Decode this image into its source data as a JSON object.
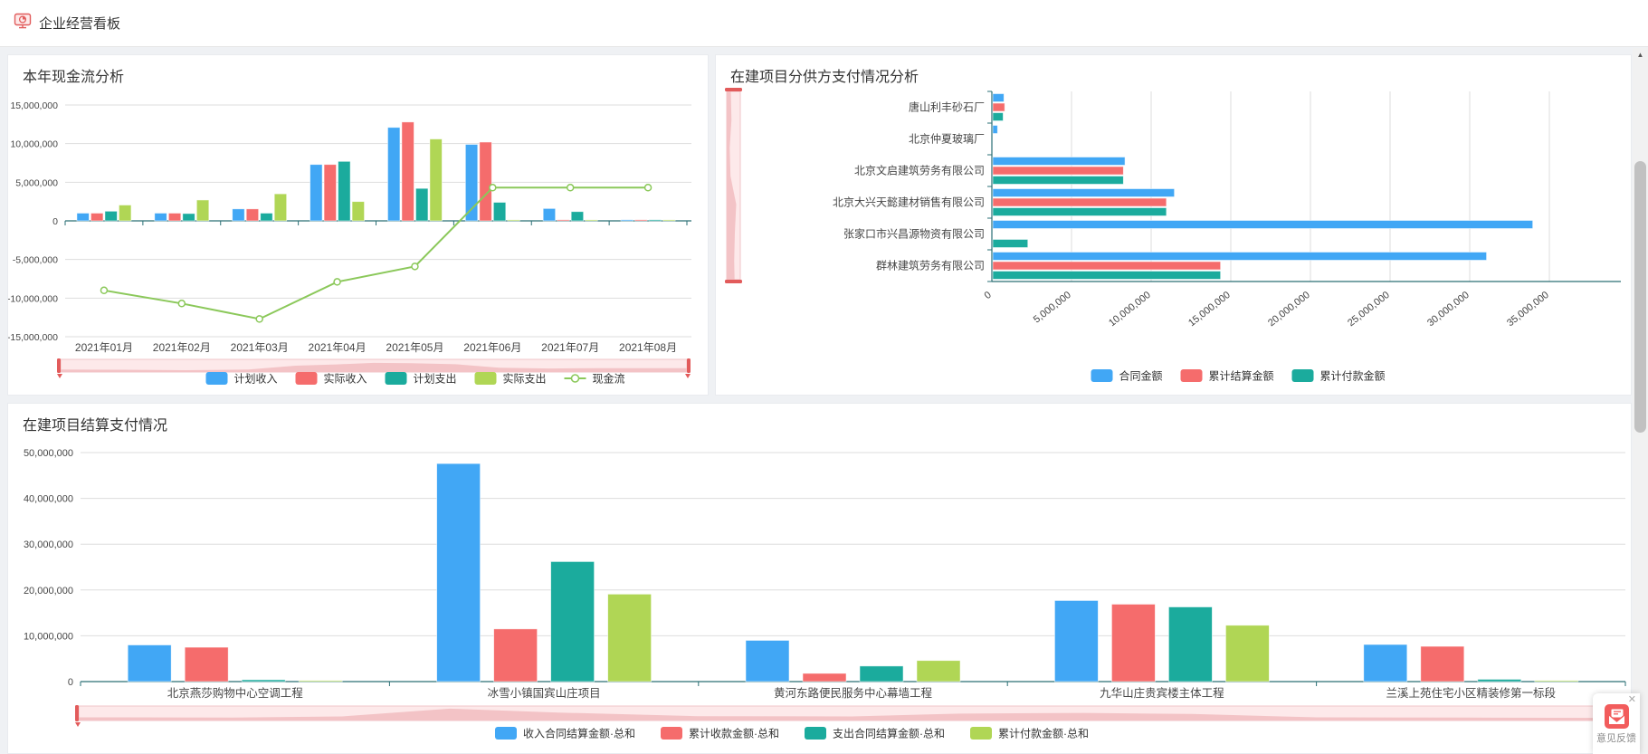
{
  "header": {
    "title": "企业经营看板"
  },
  "colors": {
    "series_blue": "#41A7F5",
    "series_red": "#F56C6C",
    "series_teal": "#1BAB9D",
    "series_green": "#B0D655",
    "line_green": "#8BC85A",
    "axis": "#2A6F75",
    "grid": "#DDDDDD",
    "label": "#464646",
    "slider_bg": "#FDE9EA",
    "slider_fill": "#F3C3C6",
    "slider_border": "#F0C6C9",
    "slider_handle": "#E25B5B",
    "accent_red": "#E15C5C"
  },
  "chart_data": [
    {
      "id": "cashflow",
      "type": "bar+line",
      "title": "本年现金流分析",
      "categories": [
        "2021年01月",
        "2021年02月",
        "2021年03月",
        "2021年04月",
        "2021年05月",
        "2021年06月",
        "2021年07月",
        "2021年08月"
      ],
      "ylim": [
        -15000000,
        15000000
      ],
      "ytick_step": 5000000,
      "grid": true,
      "legend_position": "bottom",
      "series": [
        {
          "name": "计划收入",
          "type": "bar",
          "color": "#41A7F5",
          "values": [
            1000000,
            1000000,
            1550000,
            7300000,
            12100000,
            9900000,
            1600000,
            150000
          ]
        },
        {
          "name": "实际收入",
          "type": "bar",
          "color": "#F56C6C",
          "values": [
            1000000,
            1000000,
            1550000,
            7300000,
            12800000,
            10200000,
            150000,
            150000
          ]
        },
        {
          "name": "计划支出",
          "type": "bar",
          "color": "#1BAB9D",
          "values": [
            1250000,
            950000,
            1000000,
            7700000,
            4200000,
            2400000,
            1200000,
            150000
          ]
        },
        {
          "name": "实际支出",
          "type": "bar",
          "color": "#B0D655",
          "values": [
            2050000,
            2700000,
            3500000,
            2500000,
            10600000,
            100000,
            100000,
            100000
          ]
        },
        {
          "name": "现金流",
          "type": "line",
          "color": "#8BC85A",
          "values": [
            -9000000,
            -10700000,
            -12700000,
            -7900000,
            -5900000,
            4300000,
            4300000,
            4300000
          ]
        }
      ]
    },
    {
      "id": "suppliers",
      "type": "horizontal-bar",
      "title": "在建项目分供方支付情况分析",
      "categories": [
        "唐山利丰砂石厂",
        "北京仲夏玻璃厂",
        "北京文启建筑劳务有限公司",
        "北京大兴天懿建材销售有限公司",
        "张家口市兴昌源物资有限公司",
        "群林建筑劳务有限公司"
      ],
      "xlim": [
        0,
        35000000
      ],
      "xtick_step": 5000000,
      "grid": true,
      "legend_position": "bottom",
      "series": [
        {
          "name": "合同金额",
          "type": "bar",
          "color": "#41A7F5",
          "values": [
            700000,
            300000,
            8300000,
            11400000,
            33900000,
            31000000
          ]
        },
        {
          "name": "累计结算金额",
          "type": "bar",
          "color": "#F56C6C",
          "values": [
            750000,
            0,
            8200000,
            10900000,
            0,
            14300000
          ]
        },
        {
          "name": "累计付款金额",
          "type": "bar",
          "color": "#1BAB9D",
          "values": [
            650000,
            0,
            8200000,
            10900000,
            2200000,
            14300000
          ]
        }
      ]
    },
    {
      "id": "settlement",
      "type": "bar",
      "title": "在建项目结算支付情况",
      "categories": [
        "北京燕莎购物中心空调工程",
        "冰雪小镇国宾山庄项目",
        "黄河东路便民服务中心幕墙工程",
        "九华山庄贵宾楼主体工程",
        "兰溪上苑住宅小区精装修第一标段"
      ],
      "ylim": [
        0,
        50000000
      ],
      "ytick_step": 10000000,
      "grid": true,
      "legend_position": "bottom",
      "series": [
        {
          "name": "收入合同结算金额·总和",
          "type": "bar",
          "color": "#41A7F5",
          "values": [
            8000000,
            47600000,
            9000000,
            17700000,
            8100000
          ]
        },
        {
          "name": "累计收款金额·总和",
          "type": "bar",
          "color": "#F56C6C",
          "values": [
            7500000,
            11500000,
            1800000,
            16900000,
            7700000
          ]
        },
        {
          "name": "支出合同结算金额·总和",
          "type": "bar",
          "color": "#1BAB9D",
          "values": [
            400000,
            26200000,
            3400000,
            16300000,
            500000
          ]
        },
        {
          "name": "累计付款金额·总和",
          "type": "bar",
          "color": "#B0D655",
          "values": [
            150000,
            19100000,
            4600000,
            12300000,
            150000
          ]
        }
      ]
    }
  ],
  "scrollbar": {
    "up_arrow": "▲"
  },
  "feedback": {
    "label": "意见反馈",
    "close_label": "✕"
  }
}
